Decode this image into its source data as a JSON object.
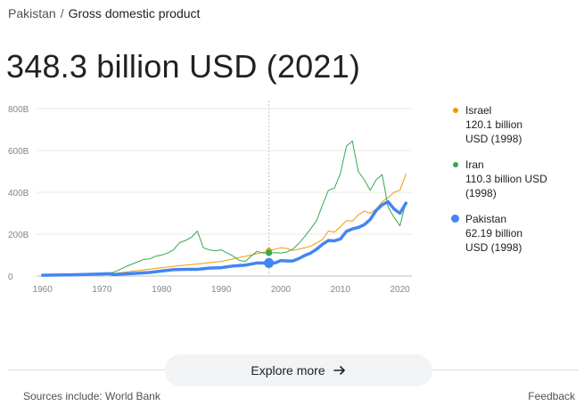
{
  "breadcrumb": {
    "parent": "Pakistan",
    "separator": "/",
    "current": "Gross domestic product"
  },
  "headline": "348.3 billion USD (2021)",
  "hover_year": 1998,
  "legend": [
    {
      "name": "Israel",
      "value_line1": "120.1 billion",
      "value_line2": "USD (1998)",
      "color": "#f29900"
    },
    {
      "name": "Iran",
      "value_line1": "110.3 billion USD",
      "value_line2": "(1998)",
      "color": "#34a853"
    },
    {
      "name": "Pakistan",
      "value_line1": "62.19 billion",
      "value_line2": "USD (1998)",
      "color": "#4285f4"
    }
  ],
  "explore_label": "Explore more",
  "sources": "Sources include: World Bank",
  "feedback": "Feedback",
  "chart_data": {
    "type": "line",
    "title": "",
    "xlabel": "",
    "ylabel": "",
    "xlim": [
      1959,
      2022
    ],
    "ylim": [
      0,
      800
    ],
    "y_ticks": [
      "0",
      "200B",
      "400B",
      "600B",
      "800B"
    ],
    "x_ticks": [
      "1960",
      "1970",
      "1980",
      "1990",
      "2000",
      "2010",
      "2020"
    ],
    "grid": true,
    "legend_position": "right",
    "series": [
      {
        "name": "Israel",
        "color": "#f29900",
        "points": [
          [
            1960,
            3
          ],
          [
            1965,
            5
          ],
          [
            1970,
            8
          ],
          [
            1972,
            12
          ],
          [
            1975,
            22
          ],
          [
            1980,
            40
          ],
          [
            1985,
            55
          ],
          [
            1990,
            70
          ],
          [
            1995,
            100
          ],
          [
            1998,
            120
          ],
          [
            2000,
            135
          ],
          [
            2001,
            132
          ],
          [
            2002,
            122
          ],
          [
            2003,
            128
          ],
          [
            2005,
            142
          ],
          [
            2007,
            175
          ],
          [
            2008,
            215
          ],
          [
            2009,
            210
          ],
          [
            2010,
            235
          ],
          [
            2011,
            265
          ],
          [
            2012,
            262
          ],
          [
            2013,
            292
          ],
          [
            2014,
            310
          ],
          [
            2015,
            300
          ],
          [
            2016,
            320
          ],
          [
            2017,
            355
          ],
          [
            2018,
            375
          ],
          [
            2019,
            400
          ],
          [
            2020,
            410
          ],
          [
            2021,
            488
          ]
        ]
      },
      {
        "name": "Iran",
        "color": "#34a853",
        "points": [
          [
            1960,
            4
          ],
          [
            1965,
            6
          ],
          [
            1970,
            10
          ],
          [
            1972,
            18
          ],
          [
            1974,
            45
          ],
          [
            1976,
            68
          ],
          [
            1977,
            80
          ],
          [
            1978,
            82
          ],
          [
            1979,
            95
          ],
          [
            1980,
            100
          ],
          [
            1981,
            110
          ],
          [
            1982,
            125
          ],
          [
            1983,
            160
          ],
          [
            1984,
            170
          ],
          [
            1985,
            185
          ],
          [
            1986,
            215
          ],
          [
            1987,
            135
          ],
          [
            1988,
            125
          ],
          [
            1989,
            120
          ],
          [
            1990,
            125
          ],
          [
            1991,
            110
          ],
          [
            1992,
            95
          ],
          [
            1993,
            75
          ],
          [
            1994,
            70
          ],
          [
            1995,
            95
          ],
          [
            1996,
            118
          ],
          [
            1997,
            110
          ],
          [
            1998,
            110
          ],
          [
            1999,
            112
          ],
          [
            2000,
            110
          ],
          [
            2001,
            115
          ],
          [
            2002,
            128
          ],
          [
            2003,
            155
          ],
          [
            2004,
            188
          ],
          [
            2005,
            225
          ],
          [
            2006,
            265
          ],
          [
            2007,
            340
          ],
          [
            2008,
            410
          ],
          [
            2009,
            420
          ],
          [
            2010,
            490
          ],
          [
            2011,
            620
          ],
          [
            2012,
            645
          ],
          [
            2013,
            500
          ],
          [
            2014,
            460
          ],
          [
            2015,
            410
          ],
          [
            2016,
            460
          ],
          [
            2017,
            485
          ],
          [
            2018,
            330
          ],
          [
            2019,
            280
          ],
          [
            2020,
            240
          ],
          [
            2021,
            355
          ]
        ]
      },
      {
        "name": "Pakistan",
        "color": "#4285f4",
        "points": [
          [
            1960,
            4
          ],
          [
            1965,
            6
          ],
          [
            1970,
            10
          ],
          [
            1971,
            11
          ],
          [
            1972,
            7
          ],
          [
            1975,
            12
          ],
          [
            1978,
            17
          ],
          [
            1980,
            24
          ],
          [
            1982,
            30
          ],
          [
            1984,
            32
          ],
          [
            1986,
            32
          ],
          [
            1988,
            38
          ],
          [
            1990,
            40
          ],
          [
            1992,
            48
          ],
          [
            1994,
            52
          ],
          [
            1996,
            62
          ],
          [
            1997,
            62
          ],
          [
            1998,
            62
          ],
          [
            1999,
            62
          ],
          [
            2000,
            74
          ],
          [
            2001,
            72
          ],
          [
            2002,
            72
          ],
          [
            2003,
            83
          ],
          [
            2004,
            98
          ],
          [
            2005,
            110
          ],
          [
            2006,
            128
          ],
          [
            2007,
            152
          ],
          [
            2008,
            170
          ],
          [
            2009,
            168
          ],
          [
            2010,
            177
          ],
          [
            2011,
            213
          ],
          [
            2012,
            225
          ],
          [
            2013,
            232
          ],
          [
            2014,
            245
          ],
          [
            2015,
            270
          ],
          [
            2016,
            313
          ],
          [
            2017,
            340
          ],
          [
            2018,
            355
          ],
          [
            2019,
            320
          ],
          [
            2020,
            300
          ],
          [
            2021,
            348
          ]
        ]
      }
    ]
  }
}
